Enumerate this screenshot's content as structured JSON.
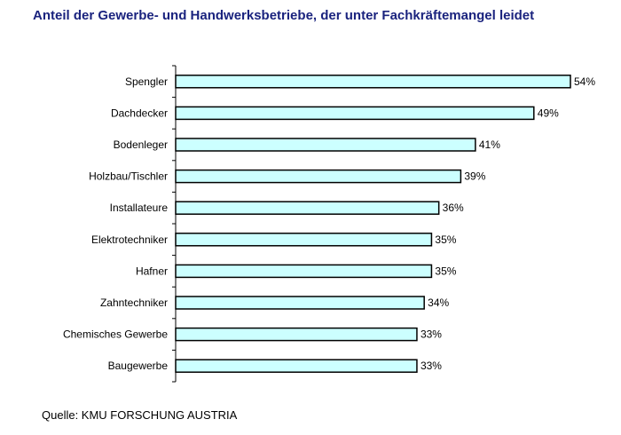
{
  "chart_data": {
    "type": "bar",
    "orientation": "horizontal",
    "title": "Anteil der Gewerbe- und Handwerksbetriebe, der unter Fachkräftemangel leidet",
    "categories": [
      "Spengler",
      "Dachdecker",
      "Bodenleger",
      "Holzbau/Tischler",
      "Installateure",
      "Elektrotechniker",
      "Hafner",
      "Zahntechniker",
      "Chemisches Gewerbe",
      "Baugewerbe"
    ],
    "values": [
      54,
      49,
      41,
      39,
      36,
      35,
      35,
      34,
      33,
      33
    ],
    "data_labels": [
      "54%",
      "49%",
      "41%",
      "39%",
      "36%",
      "35%",
      "35%",
      "34%",
      "33%",
      "33%"
    ],
    "unit": "%",
    "xlabel": "",
    "ylabel": "",
    "xlim": [
      0,
      54
    ],
    "grid": false,
    "legend": "none",
    "bar_color": "#ccffff",
    "bar_edge_color": "#000000"
  },
  "source": "Quelle: KMU FORSCHUNG AUSTRIA",
  "colors": {
    "title": "#1a237e",
    "text": "#000000",
    "background": "#ffffff"
  }
}
